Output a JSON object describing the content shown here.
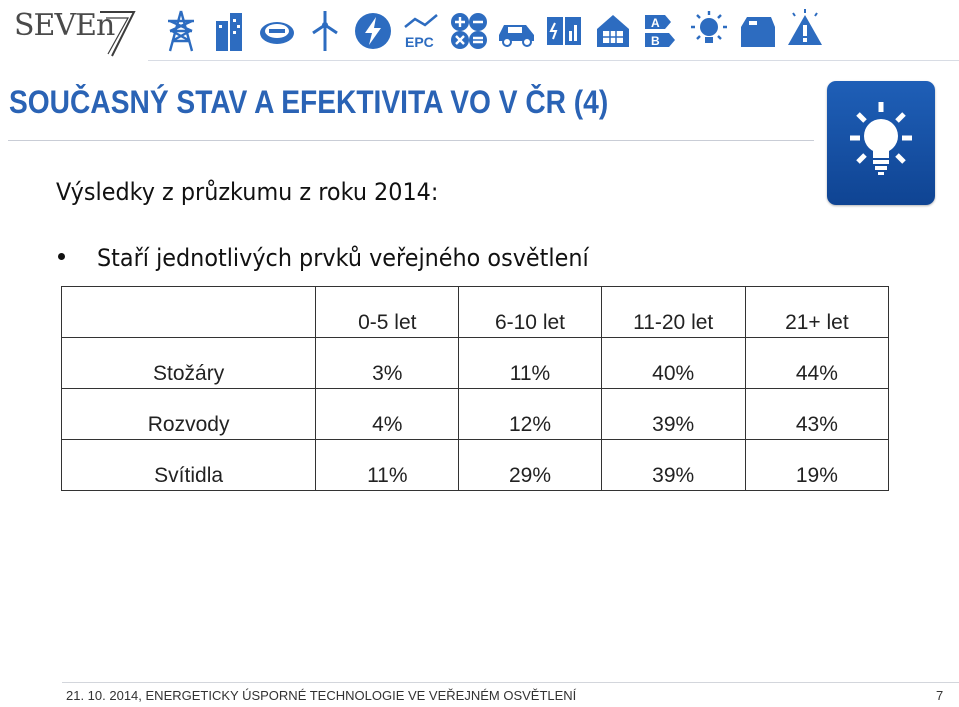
{
  "header": {
    "logo_text": "SEVEn",
    "icons": [
      "power-pylon-icon",
      "building-icon",
      "gas-meter-icon",
      "wind-turbine-icon",
      "lightning-icon",
      "epc-icon",
      "calculator-signs-icon",
      "electric-car-icon",
      "document-chart-icon",
      "house-solar-icon",
      "energy-label-icon",
      "sun-bulb-icon",
      "house-roof-icon",
      "warning-bulb-icon"
    ],
    "epc_label": "EPC",
    "energy_label_a": "A",
    "energy_label_b": "B"
  },
  "slide": {
    "title": "SOUČASNÝ STAV A EFEKTIVITA VO V ČR (4)",
    "subtitle": "Výsledky z průzkumu z roku 2014:",
    "bullet": "Staří jednotlivých prvků veřejného osvětlení"
  },
  "table": {
    "headers": [
      "",
      "0-5 let",
      "6-10 let",
      "11-20 let",
      "21+ let"
    ],
    "rows": [
      [
        "Stožáry",
        "3%",
        "11%",
        "40%",
        "44%"
      ],
      [
        "Rozvody",
        "4%",
        "12%",
        "39%",
        "43%"
      ],
      [
        "Svítidla",
        "11%",
        "29%",
        "39%",
        "19%"
      ]
    ]
  },
  "footer": {
    "text": "21. 10. 2014, ENERGETICKY ÚSPORNÉ TECHNOLOGIE VE VEŘEJNÉM OSVĚTLENÍ",
    "page": "7"
  },
  "colors": {
    "title": "#2a63b5",
    "tile": "#1a55a8",
    "icon": "#2d6cc0"
  }
}
